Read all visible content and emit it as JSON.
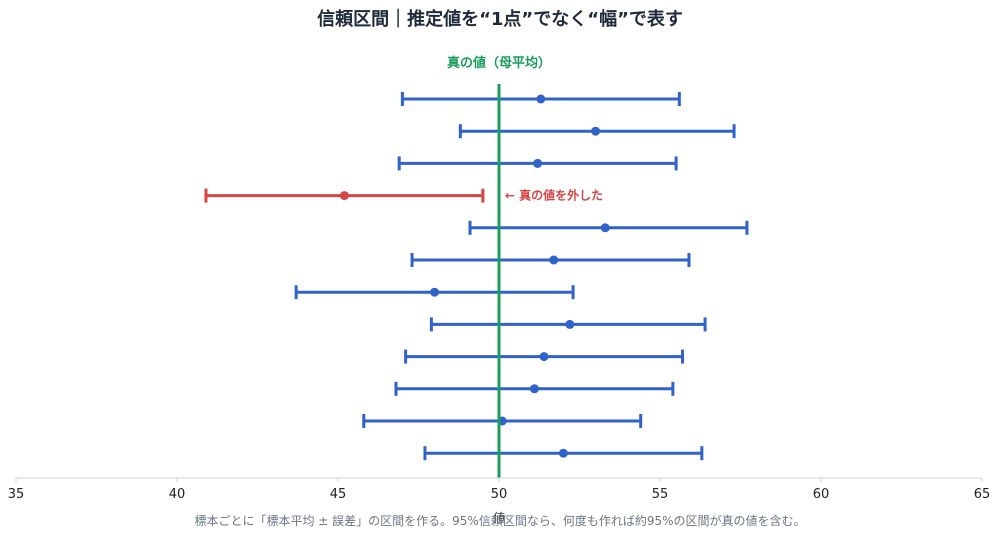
{
  "chart_data": {
    "type": "errorbar",
    "title": "信頼区間｜推定値を“1点”でなく“幅”で表す",
    "xlabel": "値",
    "xlim": [
      35,
      65
    ],
    "xticks": [
      35,
      40,
      45,
      50,
      55,
      60,
      65
    ],
    "true_value": 50,
    "true_value_label": "真の値（母平均）",
    "annotation": "← 真の値を外した",
    "caption": "標本ごとに「標本平均 ± 誤差」の区間を作る。95%信頼区間なら、何度も作れば約95%の区間が真の値を含む。",
    "colors": {
      "covers": "#2f63c9",
      "misses": "#d64545",
      "true_line": "#1a9c5b"
    },
    "intervals": [
      {
        "mean": 51.3,
        "low": 47.0,
        "high": 55.6,
        "covers": true
      },
      {
        "mean": 53.0,
        "low": 48.8,
        "high": 57.3,
        "covers": true
      },
      {
        "mean": 51.2,
        "low": 46.9,
        "high": 55.5,
        "covers": true
      },
      {
        "mean": 45.2,
        "low": 40.9,
        "high": 49.5,
        "covers": false
      },
      {
        "mean": 53.3,
        "low": 49.1,
        "high": 57.7,
        "covers": true
      },
      {
        "mean": 51.7,
        "low": 47.3,
        "high": 55.9,
        "covers": true
      },
      {
        "mean": 48.0,
        "low": 43.7,
        "high": 52.3,
        "covers": true
      },
      {
        "mean": 52.2,
        "low": 47.9,
        "high": 56.4,
        "covers": true
      },
      {
        "mean": 51.4,
        "low": 47.1,
        "high": 55.7,
        "covers": true
      },
      {
        "mean": 51.1,
        "low": 46.8,
        "high": 55.4,
        "covers": true
      },
      {
        "mean": 50.1,
        "low": 45.8,
        "high": 54.4,
        "covers": true
      },
      {
        "mean": 52.0,
        "low": 47.7,
        "high": 56.3,
        "covers": true
      }
    ]
  }
}
